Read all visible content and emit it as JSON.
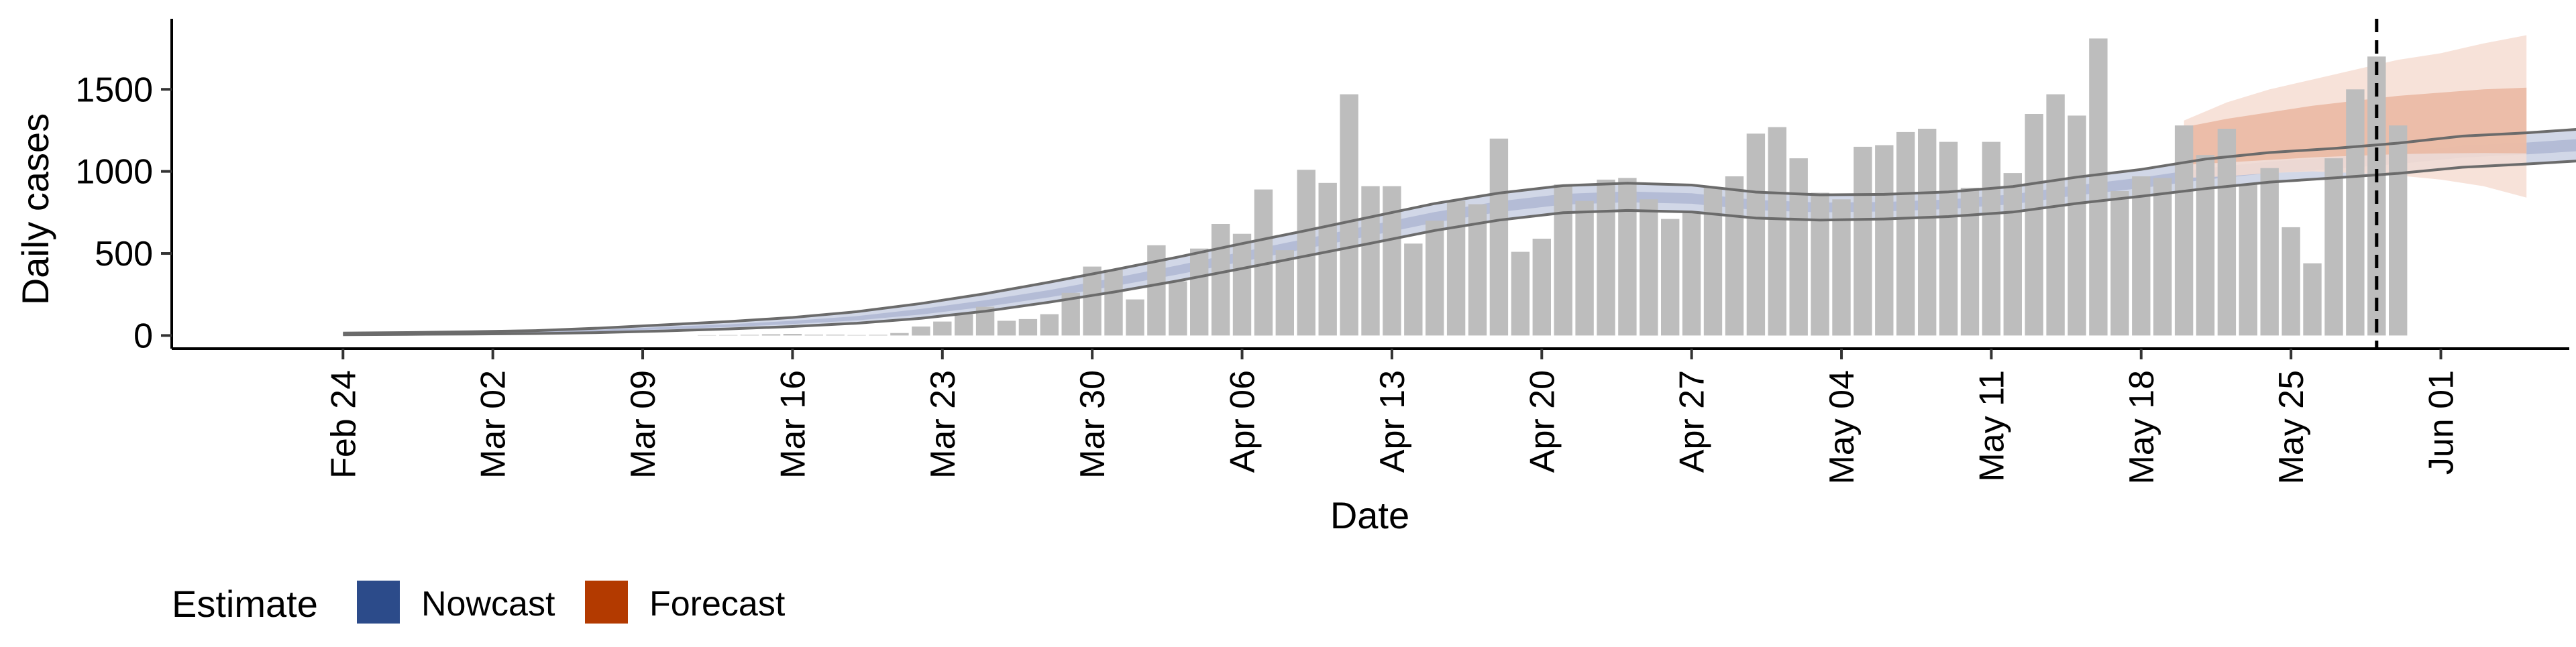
{
  "chart_data": {
    "type": "bar",
    "xlabel": "Date",
    "ylabel": "Daily cases",
    "x_range": [
      "2020-02-16",
      "2020-06-07"
    ],
    "ylim": [
      -80,
      1930
    ],
    "y_ticks": [
      0,
      500,
      1000,
      1500
    ],
    "y_tick_labels": [
      "0",
      "500",
      "1000",
      "1500"
    ],
    "x_ticks": [
      "2020-02-24",
      "2020-03-02",
      "2020-03-09",
      "2020-03-16",
      "2020-03-23",
      "2020-03-30",
      "2020-04-06",
      "2020-04-13",
      "2020-04-20",
      "2020-04-27",
      "2020-05-04",
      "2020-05-11",
      "2020-05-18",
      "2020-05-25",
      "2020-06-01"
    ],
    "x_tick_labels": [
      "Feb 24",
      "Mar 02",
      "Mar 09",
      "Mar 16",
      "Mar 23",
      "Mar 30",
      "Apr 06",
      "Apr 13",
      "Apr 20",
      "Apr 27",
      "May 04",
      "May 11",
      "May 18",
      "May 25",
      "Jun 01"
    ],
    "grid": false,
    "forecast_date": "2020-05-29",
    "bar_color": "#bdbdbd",
    "bars": {
      "start": "2020-02-24",
      "values": [
        0,
        0,
        0,
        0,
        0,
        0,
        0,
        0,
        0,
        0,
        0,
        0,
        0,
        0,
        0,
        0,
        0,
        2,
        3,
        4,
        8,
        10,
        5,
        5,
        3,
        4,
        15,
        55,
        85,
        130,
        175,
        90,
        100,
        130,
        260,
        420,
        400,
        220,
        550,
        330,
        530,
        680,
        620,
        890,
        520,
        1010,
        930,
        1470,
        910,
        910,
        560,
        700,
        820,
        800,
        1200,
        510,
        590,
        920,
        820,
        950,
        960,
        830,
        710,
        750,
        900,
        970,
        1230,
        1270,
        1080,
        870,
        830,
        1150,
        1160,
        1240,
        1260,
        1180,
        900,
        1180,
        990,
        1350,
        1470,
        1340,
        1810,
        880,
        970,
        960,
        1280,
        1100,
        1260,
        920,
        1020,
        660,
        440,
        1080,
        1500,
        1700,
        1280
      ]
    },
    "series": [
      {
        "name": "Nowcast",
        "color": "#2c4b8a",
        "start": "2020-02-24",
        "step_days": 3,
        "median": [
          10,
          12,
          15,
          20,
          30,
          45,
          60,
          80,
          105,
          145,
          195,
          255,
          325,
          400,
          480,
          560,
          640,
          720,
          785,
          830,
          845,
          835,
          795,
          780,
          785,
          800,
          830,
          885,
          930,
          985,
          1025,
          1050,
          1080,
          1120,
          1140,
          1165,
          1155,
          1130,
          1100,
          1095,
          1110,
          1170
        ],
        "lower50": [
          8,
          10,
          12,
          17,
          25,
          38,
          52,
          70,
          92,
          128,
          175,
          233,
          300,
          372,
          450,
          530,
          608,
          688,
          752,
          797,
          812,
          803,
          764,
          750,
          756,
          771,
          800,
          854,
          898,
          950,
          990,
          1015,
          1045,
          1084,
          1104,
          1128,
          1118,
          1094,
          1065,
          1060,
          1075,
          1133
        ],
        "upper50": [
          12,
          14,
          18,
          23,
          35,
          52,
          68,
          90,
          118,
          162,
          215,
          277,
          350,
          428,
          510,
          590,
          672,
          752,
          818,
          863,
          878,
          867,
          826,
          810,
          814,
          829,
          860,
          916,
          962,
          1020,
          1060,
          1085,
          1115,
          1156,
          1176,
          1202,
          1192,
          1166,
          1135,
          1130,
          1145,
          1207
        ],
        "lower90": [
          5,
          7,
          9,
          12,
          18,
          28,
          40,
          55,
          75,
          105,
          148,
          203,
          265,
          333,
          408,
          485,
          562,
          640,
          703,
          748,
          762,
          753,
          716,
          703,
          710,
          725,
          752,
          805,
          848,
          895,
          935,
          960,
          988,
          1025,
          1045,
          1068,
          1058,
          1035,
          1010,
          990,
          990,
          1030
        ],
        "upper90": [
          15,
          18,
          23,
          30,
          45,
          65,
          85,
          110,
          145,
          195,
          255,
          325,
          400,
          478,
          560,
          640,
          722,
          804,
          868,
          913,
          928,
          917,
          874,
          857,
          860,
          875,
          908,
          965,
          1012,
          1075,
          1115,
          1140,
          1172,
          1215,
          1235,
          1262,
          1252,
          1226,
          1196,
          1205,
          1250,
          1305
        ],
        "band_colors": [
          "#c9d0e3",
          "#b0b9d4"
        ]
      },
      {
        "name": "Forecast",
        "color": "#b33a00",
        "start": "2020-05-20",
        "step_days": 2,
        "median": [
          1150,
          1180,
          1210,
          1240,
          1265,
          1285,
          1300,
          1310,
          1320
        ],
        "lower50": [
          1040,
          1055,
          1070,
          1085,
          1095,
          1105,
          1110,
          1112,
          1110
        ],
        "upper50": [
          1270,
          1320,
          1360,
          1400,
          1430,
          1460,
          1480,
          1500,
          1510
        ],
        "lower90": [
          960,
          970,
          990,
          1000,
          990,
          975,
          950,
          910,
          840
        ],
        "upper90": [
          1310,
          1420,
          1500,
          1560,
          1620,
          1680,
          1720,
          1780,
          1830
        ],
        "band_colors": [
          "#f6ddd2",
          "#eab9a3"
        ]
      }
    ],
    "legend": {
      "title": "Estimate",
      "position": "bottom-left",
      "items": [
        {
          "label": "Nowcast",
          "color": "#2c4b8a"
        },
        {
          "label": "Forecast",
          "color": "#b33a00"
        }
      ]
    }
  }
}
